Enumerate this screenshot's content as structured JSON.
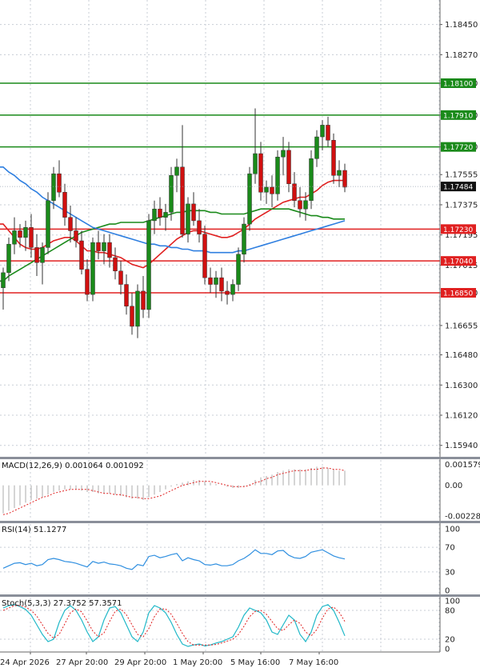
{
  "chart_data": {
    "type": "candlestick",
    "price_axis_labels": [
      "1.18450",
      "1.18270",
      "1.18100",
      "1.17910",
      "1.17720",
      "1.17555",
      "1.17375",
      "1.17195",
      "1.17015",
      "1.16850",
      "1.16655",
      "1.16480",
      "1.16300",
      "1.16120",
      "1.15940"
    ],
    "time_labels": [
      "24 Apr 2026",
      "27 Apr 20:00",
      "29 Apr 20:00",
      "1 May 20:00",
      "5 May 16:00",
      "7 May 16:00"
    ],
    "current_price": {
      "label": "1.17484",
      "value": 1.17484
    },
    "resistance_levels": [
      {
        "label": "1.18100",
        "value": 1.181,
        "color": "#1a8a1a"
      },
      {
        "label": "1.17910",
        "value": 1.1791,
        "color": "#1a8a1a"
      },
      {
        "label": "1.17720",
        "value": 1.1772,
        "color": "#1a8a1a"
      }
    ],
    "support_levels": [
      {
        "label": "1.17230",
        "value": 1.1723,
        "color": "#e02020"
      },
      {
        "label": "1.17040",
        "value": 1.1704,
        "color": "#e02020"
      },
      {
        "label": "1.16850",
        "value": 1.1685,
        "color": "#e02020"
      }
    ],
    "ylim": [
      1.159,
      1.1853
    ],
    "candles": [
      [
        1.1688,
        1.17,
        1.1675,
        1.1697
      ],
      [
        1.1697,
        1.1718,
        1.1692,
        1.1714
      ],
      [
        1.1714,
        1.173,
        1.1708,
        1.1722
      ],
      [
        1.1722,
        1.1726,
        1.1712,
        1.1718
      ],
      [
        1.1718,
        1.1728,
        1.171,
        1.1724
      ],
      [
        1.1724,
        1.1732,
        1.1706,
        1.1712
      ],
      [
        1.1712,
        1.172,
        1.1695,
        1.1703
      ],
      [
        1.1703,
        1.1715,
        1.169,
        1.1712
      ],
      [
        1.1712,
        1.1745,
        1.1708,
        1.174
      ],
      [
        1.174,
        1.176,
        1.1735,
        1.1756
      ],
      [
        1.1756,
        1.1764,
        1.1742,
        1.1745
      ],
      [
        1.1745,
        1.175,
        1.1725,
        1.173
      ],
      [
        1.173,
        1.1737,
        1.1715,
        1.1722
      ],
      [
        1.1722,
        1.173,
        1.1712,
        1.1716
      ],
      [
        1.1716,
        1.1722,
        1.1696,
        1.1699
      ],
      [
        1.1699,
        1.1705,
        1.168,
        1.1684
      ],
      [
        1.1684,
        1.1718,
        1.168,
        1.1715
      ],
      [
        1.1715,
        1.1722,
        1.1705,
        1.171
      ],
      [
        1.171,
        1.172,
        1.1702,
        1.1715
      ],
      [
        1.1715,
        1.172,
        1.17,
        1.1706
      ],
      [
        1.1706,
        1.1712,
        1.1693,
        1.1698
      ],
      [
        1.1698,
        1.1704,
        1.1684,
        1.169
      ],
      [
        1.169,
        1.1696,
        1.1672,
        1.1677
      ],
      [
        1.1677,
        1.1685,
        1.166,
        1.1665
      ],
      [
        1.1665,
        1.169,
        1.1658,
        1.1686
      ],
      [
        1.1686,
        1.1695,
        1.167,
        1.1675
      ],
      [
        1.1675,
        1.1732,
        1.167,
        1.1728
      ],
      [
        1.1728,
        1.174,
        1.172,
        1.1735
      ],
      [
        1.1735,
        1.1742,
        1.1725,
        1.173
      ],
      [
        1.173,
        1.1738,
        1.1722,
        1.1733
      ],
      [
        1.1733,
        1.176,
        1.1728,
        1.1755
      ],
      [
        1.1755,
        1.1765,
        1.1745,
        1.176
      ],
      [
        1.176,
        1.1785,
        1.1718,
        1.172
      ],
      [
        1.172,
        1.1742,
        1.1715,
        1.1738
      ],
      [
        1.1738,
        1.1745,
        1.1725,
        1.1728
      ],
      [
        1.1728,
        1.1735,
        1.1715,
        1.172
      ],
      [
        1.172,
        1.1725,
        1.169,
        1.1694
      ],
      [
        1.1694,
        1.17,
        1.1685,
        1.169
      ],
      [
        1.169,
        1.1698,
        1.1682,
        1.1694
      ],
      [
        1.1694,
        1.17,
        1.168,
        1.1686
      ],
      [
        1.1686,
        1.1692,
        1.1678,
        1.1684
      ],
      [
        1.1684,
        1.1693,
        1.168,
        1.169
      ],
      [
        1.169,
        1.1712,
        1.1686,
        1.1708
      ],
      [
        1.1708,
        1.173,
        1.1703,
        1.1726
      ],
      [
        1.1726,
        1.176,
        1.1722,
        1.1756
      ],
      [
        1.1756,
        1.1795,
        1.175,
        1.1768
      ],
      [
        1.1768,
        1.1775,
        1.174,
        1.1745
      ],
      [
        1.1745,
        1.1752,
        1.1738,
        1.1748
      ],
      [
        1.1748,
        1.1755,
        1.1736,
        1.1744
      ],
      [
        1.1744,
        1.177,
        1.174,
        1.1766
      ],
      [
        1.1766,
        1.1778,
        1.1755,
        1.177
      ],
      [
        1.177,
        1.1775,
        1.1745,
        1.175
      ],
      [
        1.175,
        1.1757,
        1.1736,
        1.174
      ],
      [
        1.174,
        1.1748,
        1.173,
        1.1735
      ],
      [
        1.1735,
        1.1745,
        1.1728,
        1.174
      ],
      [
        1.174,
        1.177,
        1.1735,
        1.1765
      ],
      [
        1.1765,
        1.1782,
        1.176,
        1.1778
      ],
      [
        1.1778,
        1.1788,
        1.177,
        1.1785
      ],
      [
        1.1785,
        1.179,
        1.1772,
        1.1776
      ],
      [
        1.1776,
        1.178,
        1.175,
        1.1755
      ],
      [
        1.1755,
        1.1764,
        1.1748,
        1.1758
      ],
      [
        1.1758,
        1.1762,
        1.1745,
        1.1748
      ]
    ],
    "moving_averages": [
      {
        "color": "#e02020",
        "values": [
          1.1726,
          1.1722,
          1.1718,
          1.1714,
          1.1712,
          1.1711,
          1.1711,
          1.1712,
          1.1714,
          1.1716,
          1.1717,
          1.1718,
          1.1718,
          1.1716,
          1.1713,
          1.171,
          1.171,
          1.1709,
          1.1709,
          1.1708,
          1.1707,
          1.1706,
          1.1704,
          1.1702,
          1.1701,
          1.17,
          1.1702,
          1.1705,
          1.1708,
          1.1711,
          1.1714,
          1.1717,
          1.1719,
          1.1721,
          1.1722,
          1.1722,
          1.1721,
          1.172,
          1.1719,
          1.1718,
          1.1718,
          1.1719,
          1.1721,
          1.1723,
          1.1726,
          1.1729,
          1.1731,
          1.1733,
          1.1735,
          1.1737,
          1.1739,
          1.174,
          1.1741,
          1.1742,
          1.1742,
          1.1744,
          1.1746,
          1.1749,
          1.1751,
          1.1752,
          1.1752,
          1.1752
        ]
      },
      {
        "color": "#1a8a1a",
        "values": [
          1.1692,
          1.1695,
          1.1697,
          1.1699,
          1.1701,
          1.1703,
          1.1705,
          1.1707,
          1.1709,
          1.1711,
          1.1713,
          1.1715,
          1.1717,
          1.1719,
          1.1721,
          1.1722,
          1.1723,
          1.1724,
          1.1725,
          1.1726,
          1.1726,
          1.1727,
          1.1727,
          1.1727,
          1.1727,
          1.1727,
          1.1728,
          1.1729,
          1.173,
          1.1731,
          1.1732,
          1.1733,
          1.1733,
          1.1734,
          1.1734,
          1.1734,
          1.1734,
          1.1733,
          1.1733,
          1.1732,
          1.1732,
          1.1732,
          1.1732,
          1.1732,
          1.1733,
          1.1734,
          1.1735,
          1.1735,
          1.1735,
          1.1735,
          1.1735,
          1.1735,
          1.1734,
          1.1733,
          1.1732,
          1.1731,
          1.1731,
          1.173,
          1.173,
          1.1729,
          1.1729,
          1.1729
        ]
      },
      {
        "color": "#2f7fe0",
        "values": [
          1.176,
          1.1757,
          1.1755,
          1.1752,
          1.175,
          1.1747,
          1.1745,
          1.1742,
          1.174,
          1.1738,
          1.1736,
          1.1734,
          1.1732,
          1.173,
          1.1728,
          1.1726,
          1.1724,
          1.1723,
          1.1722,
          1.1721,
          1.172,
          1.1719,
          1.1718,
          1.1717,
          1.1716,
          1.1715,
          1.1714,
          1.1714,
          1.1713,
          1.1713,
          1.1712,
          1.1712,
          1.1711,
          1.1711,
          1.171,
          1.171,
          1.171,
          1.1709,
          1.1709,
          1.1709,
          1.1709,
          1.1709,
          1.171,
          1.171,
          1.1711,
          1.1712,
          1.1713,
          1.1714,
          1.1715,
          1.1716,
          1.1717,
          1.1718,
          1.1719,
          1.172,
          1.1721,
          1.1722,
          1.1723,
          1.1724,
          1.1725,
          1.1726,
          1.1727,
          1.1728
        ]
      }
    ],
    "macd": {
      "title": "MACD(12,26,9) 0.001064 0.001092",
      "axis_labels": [
        "0.001579",
        "0.00",
        "-0.002286"
      ],
      "ylim": [
        -0.0026,
        0.0019
      ],
      "hist": [
        -0.0021,
        -0.0019,
        -0.0017,
        -0.0015,
        -0.0013,
        -0.0011,
        -0.001,
        -0.0009,
        -0.0007,
        -0.0005,
        -0.0004,
        -0.0003,
        -0.0003,
        -0.0003,
        -0.0004,
        -0.0005,
        -0.0005,
        -0.0006,
        -0.0006,
        -0.0006,
        -0.0007,
        -0.0008,
        -0.0009,
        -0.001,
        -0.001,
        -0.0011,
        -0.0009,
        -0.0007,
        -0.0005,
        -0.0003,
        -0.0001,
        0.0001,
        0.0002,
        0.0003,
        0.0004,
        0.0004,
        0.0003,
        0.0002,
        0.0001,
        0.0,
        -0.0001,
        -0.0002,
        -0.0002,
        -0.0001,
        0.0001,
        0.0004,
        0.0006,
        0.0007,
        0.0008,
        0.001,
        0.0011,
        0.0012,
        0.0012,
        0.0012,
        0.0012,
        0.0013,
        0.0014,
        0.0014,
        0.0013,
        0.0012,
        0.0011,
        0.0011
      ],
      "signal": [
        -0.0022,
        -0.0021,
        -0.0019,
        -0.0017,
        -0.0015,
        -0.0013,
        -0.0011,
        -0.0009,
        -0.0008,
        -0.0006,
        -0.0005,
        -0.0004,
        -0.0003,
        -0.0003,
        -0.0003,
        -0.0003,
        -0.0004,
        -0.0005,
        -0.0006,
        -0.0006,
        -0.0007,
        -0.0007,
        -0.0008,
        -0.0009,
        -0.0009,
        -0.001,
        -0.001,
        -0.0009,
        -0.0008,
        -0.0006,
        -0.0004,
        -0.0002,
        0.0,
        0.0001,
        0.0002,
        0.0003,
        0.0003,
        0.0003,
        0.0002,
        0.0001,
        0.0,
        -0.0001,
        -0.0001,
        -0.0001,
        0.0,
        0.0002,
        0.0003,
        0.0005,
        0.0006,
        0.0008,
        0.0009,
        0.001,
        0.0011,
        0.0011,
        0.0011,
        0.0012,
        0.0012,
        0.0013,
        0.0013,
        0.0012,
        0.0012,
        0.0011
      ]
    },
    "rsi": {
      "title": "RSI(14) 51.1277",
      "axis_labels": [
        "100",
        "70",
        "30",
        "0"
      ],
      "ylim": [
        0,
        100
      ],
      "values": [
        36,
        40,
        44,
        45,
        42,
        44,
        40,
        42,
        50,
        52,
        50,
        47,
        46,
        44,
        41,
        38,
        47,
        44,
        46,
        43,
        42,
        40,
        36,
        34,
        42,
        40,
        55,
        57,
        53,
        55,
        58,
        60,
        48,
        53,
        50,
        48,
        42,
        41,
        43,
        40,
        40,
        42,
        48,
        52,
        58,
        66,
        60,
        60,
        58,
        64,
        65,
        57,
        53,
        52,
        55,
        62,
        64,
        66,
        61,
        56,
        53,
        51
      ]
    },
    "stoch": {
      "title": "Stoch(5,3,3) 27.3752 57.3571",
      "axis_labels": [
        "100",
        "80",
        "20",
        "0"
      ],
      "ylim": [
        0,
        100
      ],
      "k": [
        85,
        90,
        92,
        88,
        82,
        70,
        50,
        30,
        15,
        20,
        55,
        80,
        90,
        80,
        60,
        35,
        15,
        25,
        60,
        85,
        88,
        75,
        50,
        25,
        15,
        35,
        75,
        90,
        85,
        75,
        55,
        30,
        10,
        5,
        8,
        10,
        6,
        8,
        12,
        15,
        20,
        25,
        45,
        70,
        85,
        80,
        75,
        60,
        35,
        30,
        50,
        70,
        60,
        30,
        15,
        35,
        70,
        88,
        92,
        80,
        55,
        27
      ],
      "d": [
        80,
        85,
        90,
        90,
        87,
        80,
        68,
        50,
        32,
        22,
        30,
        52,
        75,
        83,
        77,
        58,
        37,
        25,
        33,
        57,
        78,
        83,
        71,
        50,
        30,
        25,
        42,
        67,
        83,
        83,
        72,
        53,
        32,
        15,
        8,
        8,
        8,
        8,
        9,
        12,
        16,
        20,
        30,
        47,
        67,
        78,
        80,
        72,
        57,
        42,
        38,
        50,
        60,
        53,
        35,
        27,
        40,
        64,
        83,
        87,
        76,
        57
      ]
    }
  }
}
